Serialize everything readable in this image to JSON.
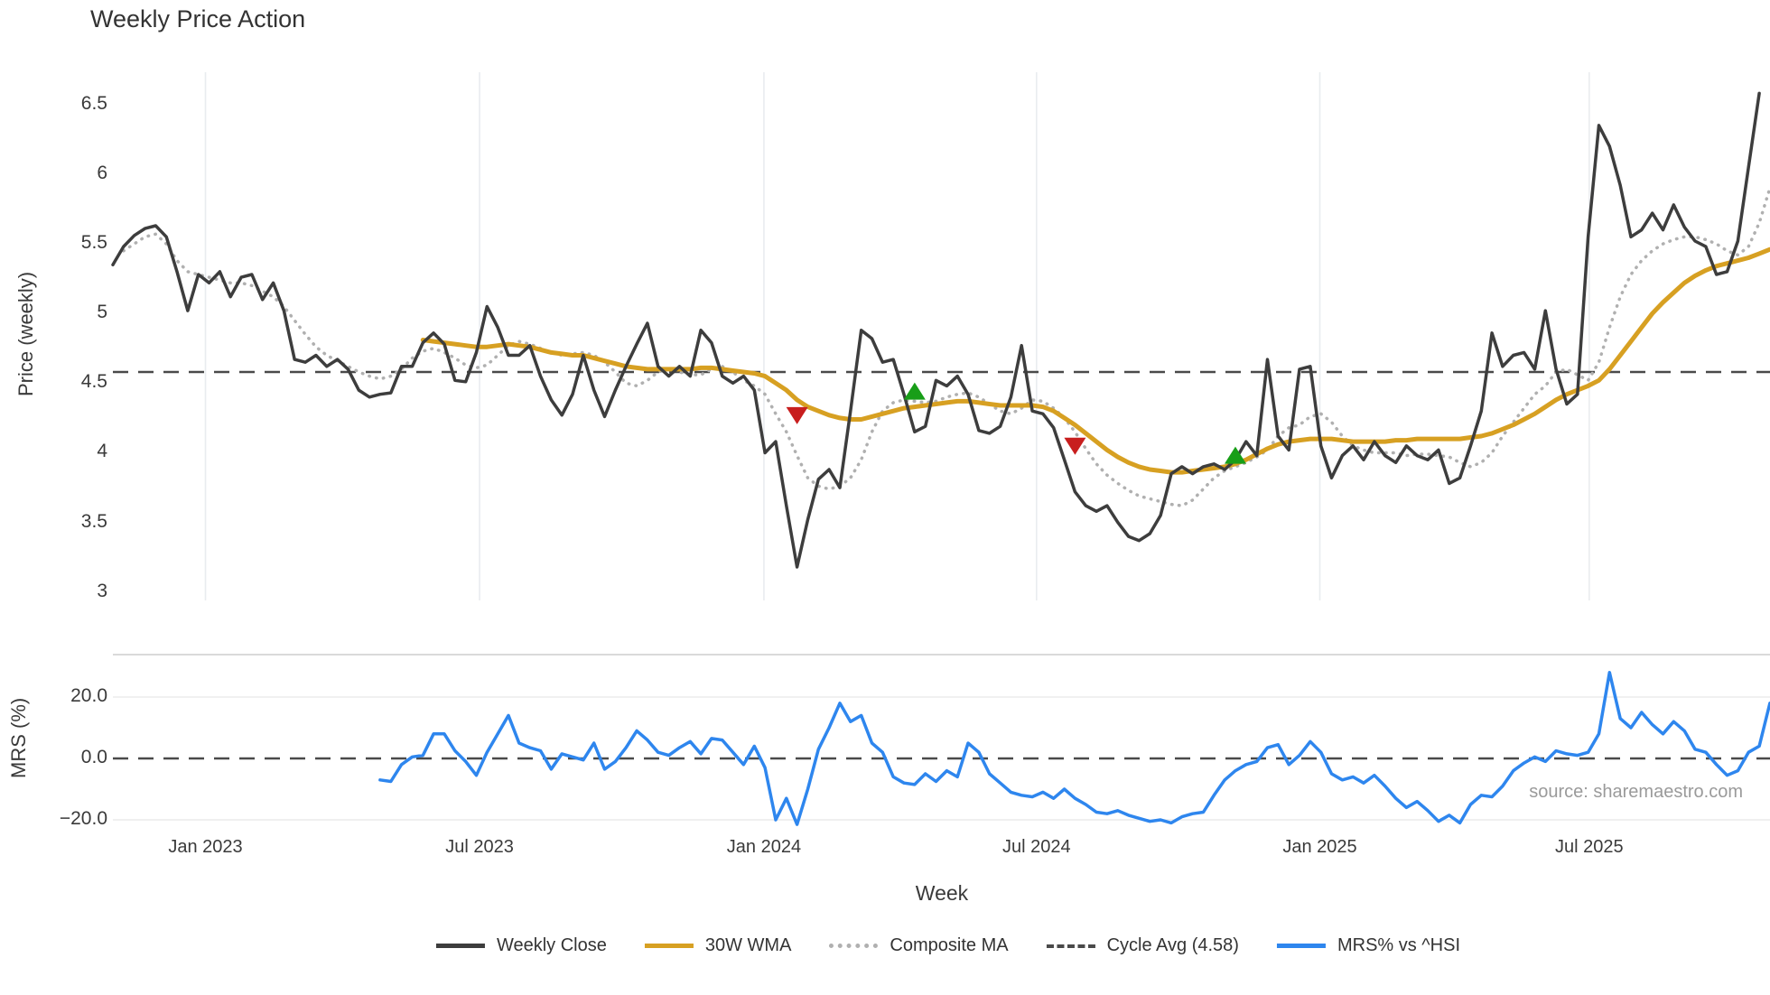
{
  "title": "Weekly Price Action",
  "source_note": "source: sharemaestro.com",
  "colors": {
    "weekly_close": "#3d3d3d",
    "wma": "#d7a022",
    "composite": "#b0b0b0",
    "cycle_avg": "#4a4a4a",
    "mrs": "#2e86ee",
    "marker_up": "#189e18",
    "marker_down": "#c81e1e",
    "grid": "#e9ecef",
    "divider": "#d4d4d4",
    "faint_grid": "#ececec",
    "text": "#3a3a3a",
    "muted": "#9a9a9a"
  },
  "chart_data": {
    "type": "line",
    "title": "Weekly Price Action",
    "xlabel": "Week",
    "legend_position": "bottom-center",
    "grid": "vertical-on-price-panel",
    "x_ticks": [
      {
        "label": "Jan 2023",
        "week": 8.66
      },
      {
        "label": "Jul 2023",
        "week": 34.3
      },
      {
        "label": "Jan 2024",
        "week": 60.9
      },
      {
        "label": "Jul 2024",
        "week": 86.4
      },
      {
        "label": "Jan 2025",
        "week": 112.9
      },
      {
        "label": "Jul 2025",
        "week": 138.1
      }
    ],
    "panels": [
      {
        "name": "price",
        "ylabel": "Price (weekly)",
        "ylim": [
          2.97,
          6.73
        ],
        "yticks": [
          {
            "v": 6.5,
            "label": "6.5"
          },
          {
            "v": 6,
            "label": "6"
          },
          {
            "v": 5.5,
            "label": "5.5"
          },
          {
            "v": 5,
            "label": "5"
          },
          {
            "v": 4.5,
            "label": "4.5"
          },
          {
            "v": 4,
            "label": "4"
          },
          {
            "v": 3.5,
            "label": "3.5"
          },
          {
            "v": 3,
            "label": "3"
          }
        ],
        "series": [
          {
            "name": "Weekly Close",
            "kind": "line",
            "color_key": "weekly_close",
            "width": 3.5,
            "start_week": 0,
            "values": [
              5.35,
              5.48,
              5.56,
              5.61,
              5.63,
              5.55,
              5.3,
              5.02,
              5.28,
              5.22,
              5.3,
              5.12,
              5.26,
              5.28,
              5.1,
              5.22,
              5.02,
              4.67,
              4.65,
              4.7,
              4.62,
              4.67,
              4.6,
              4.45,
              4.4,
              4.42,
              4.43,
              4.62,
              4.62,
              4.79,
              4.86,
              4.78,
              4.52,
              4.51,
              4.72,
              5.05,
              4.9,
              4.7,
              4.7,
              4.77,
              4.55,
              4.38,
              4.27,
              4.42,
              4.7,
              4.45,
              4.26,
              4.45,
              4.62,
              4.78,
              4.93,
              4.62,
              4.55,
              4.62,
              4.55,
              4.88,
              4.79,
              4.55,
              4.5,
              4.55,
              4.45,
              4.0,
              4.08,
              3.62,
              3.18,
              3.52,
              3.81,
              3.88,
              3.75,
              4.3,
              4.88,
              4.82,
              4.65,
              4.67,
              4.42,
              4.15,
              4.19,
              4.52,
              4.48,
              4.55,
              4.42,
              4.16,
              4.14,
              4.19,
              4.4,
              4.77,
              4.3,
              4.28,
              4.18,
              3.95,
              3.72,
              3.62,
              3.58,
              3.62,
              3.5,
              3.4,
              3.37,
              3.42,
              3.55,
              3.85,
              3.9,
              3.85,
              3.9,
              3.92,
              3.88,
              3.95,
              4.08,
              3.98,
              4.67,
              4.12,
              4.02,
              4.6,
              4.62,
              4.05,
              3.82,
              3.98,
              4.05,
              3.95,
              4.08,
              3.98,
              3.93,
              4.05,
              3.98,
              3.95,
              4.02,
              3.78,
              3.82,
              4.05,
              4.3,
              4.86,
              4.62,
              4.7,
              4.72,
              4.6,
              5.02,
              4.6,
              4.35,
              4.42,
              5.55,
              6.35,
              6.2,
              5.92,
              5.55,
              5.6,
              5.72,
              5.6,
              5.78,
              5.62,
              5.52,
              5.48,
              5.28,
              5.3,
              5.52,
              6.05,
              6.58
            ]
          },
          {
            "name": "30W WMA",
            "kind": "line",
            "color_key": "wma",
            "width": 5,
            "start_week": 29,
            "values": [
              4.81,
              4.8,
              4.79,
              4.78,
              4.77,
              4.76,
              4.76,
              4.77,
              4.78,
              4.77,
              4.76,
              4.74,
              4.72,
              4.71,
              4.7,
              4.7,
              4.68,
              4.66,
              4.64,
              4.62,
              4.61,
              4.6,
              4.6,
              4.6,
              4.6,
              4.6,
              4.61,
              4.61,
              4.6,
              4.59,
              4.58,
              4.57,
              4.55,
              4.5,
              4.45,
              4.38,
              4.33,
              4.3,
              4.27,
              4.25,
              4.24,
              4.24,
              4.26,
              4.28,
              4.3,
              4.32,
              4.33,
              4.34,
              4.35,
              4.36,
              4.37,
              4.37,
              4.36,
              4.35,
              4.34,
              4.34,
              4.34,
              4.34,
              4.33,
              4.3,
              4.25,
              4.2,
              4.14,
              4.08,
              4.02,
              3.97,
              3.93,
              3.9,
              3.88,
              3.87,
              3.86,
              3.86,
              3.87,
              3.88,
              3.89,
              3.9,
              3.92,
              3.95,
              3.99,
              4.03,
              4.06,
              4.08,
              4.09,
              4.1,
              4.1,
              4.1,
              4.09,
              4.08,
              4.08,
              4.08,
              4.08,
              4.09,
              4.09,
              4.1,
              4.1,
              4.1,
              4.1,
              4.1,
              4.11,
              4.12,
              4.14,
              4.17,
              4.2,
              4.24,
              4.28,
              4.33,
              4.38,
              4.42,
              4.45,
              4.48,
              4.52,
              4.6,
              4.7,
              4.8,
              4.9,
              5.0,
              5.08,
              5.15,
              5.22,
              5.27,
              5.31,
              5.34,
              5.36,
              5.38,
              5.4,
              5.43,
              5.46
            ]
          },
          {
            "name": "Composite MA",
            "kind": "line",
            "dash": "dotted",
            "color_key": "composite",
            "width": 3.5,
            "start_week": 1,
            "values": [
              5.45,
              5.5,
              5.55,
              5.57,
              5.5,
              5.38,
              5.3,
              5.28,
              5.26,
              5.24,
              5.22,
              5.22,
              5.2,
              5.16,
              5.12,
              5.05,
              4.95,
              4.85,
              4.76,
              4.7,
              4.66,
              4.62,
              4.58,
              4.55,
              4.53,
              4.55,
              4.6,
              4.68,
              4.73,
              4.75,
              4.72,
              4.68,
              4.63,
              4.61,
              4.63,
              4.7,
              4.77,
              4.8,
              4.78,
              4.75,
              4.72,
              4.7,
              4.71,
              4.72,
              4.7,
              4.65,
              4.58,
              4.5,
              4.48,
              4.52,
              4.58,
              4.6,
              4.58,
              4.56,
              4.56,
              4.6,
              4.62,
              4.58,
              4.52,
              4.48,
              4.42,
              4.28,
              4.15,
              3.98,
              3.82,
              3.76,
              3.74,
              3.76,
              3.82,
              3.95,
              4.15,
              4.3,
              4.36,
              4.38,
              4.37,
              4.36,
              4.37,
              4.4,
              4.42,
              4.43,
              4.4,
              4.35,
              4.3,
              4.28,
              4.32,
              4.38,
              4.37,
              4.32,
              4.25,
              4.15,
              4.03,
              3.92,
              3.84,
              3.78,
              3.73,
              3.69,
              3.67,
              3.65,
              3.63,
              3.62,
              3.66,
              3.74,
              3.82,
              3.87,
              3.9,
              3.93,
              3.97,
              4.02,
              4.12,
              4.18,
              4.2,
              4.26,
              4.28,
              4.22,
              4.12,
              4.05,
              4.02,
              4.0,
              4.0,
              4.0,
              3.98,
              3.99,
              3.99,
              3.98,
              3.97,
              3.93,
              3.9,
              3.93,
              4.0,
              4.12,
              4.22,
              4.32,
              4.42,
              4.48,
              4.58,
              4.6,
              4.56,
              4.52,
              4.65,
              4.9,
              5.12,
              5.28,
              5.38,
              5.45,
              5.5,
              5.53,
              5.55,
              5.55,
              5.53,
              5.5,
              5.45,
              5.42,
              5.48,
              5.65,
              5.9
            ]
          },
          {
            "name": "Cycle Avg (4.58)",
            "kind": "hline",
            "dash": "dashed",
            "color_key": "cycle_avg",
            "width": 2.5,
            "y": 4.58
          }
        ],
        "markers": [
          {
            "shape": "triangle-down",
            "color_key": "marker_down",
            "week": 64,
            "price": 4.27
          },
          {
            "shape": "triangle-up",
            "color_key": "marker_up",
            "week": 75,
            "price": 4.44
          },
          {
            "shape": "triangle-down",
            "color_key": "marker_down",
            "week": 90,
            "price": 4.05
          },
          {
            "shape": "triangle-up",
            "color_key": "marker_up",
            "week": 105,
            "price": 3.98
          }
        ]
      },
      {
        "name": "mrs",
        "ylabel": "MRS (%)",
        "ylim": [
          -22,
          33.8
        ],
        "yticks": [
          {
            "v": 20,
            "label": "20.0"
          },
          {
            "v": 0,
            "label": "0.0"
          },
          {
            "v": -20,
            "label": "−20.0"
          }
        ],
        "series": [
          {
            "name": "MRS% vs ^HSI",
            "kind": "line",
            "color_key": "mrs",
            "width": 3.5,
            "start_week": 25,
            "values": [
              -7,
              -7.5,
              -2,
              0.5,
              1,
              8,
              8,
              2.5,
              -1,
              -5.5,
              2,
              8,
              14,
              5,
              3.5,
              2.5,
              -3.5,
              1.5,
              0.5,
              -0.5,
              5,
              -3.5,
              -1,
              3.5,
              9,
              6,
              2,
              1,
              3.5,
              5.5,
              1.5,
              6.5,
              6,
              2,
              -2,
              4,
              -3,
              -20,
              -13,
              -21.5,
              -10,
              3,
              10,
              18,
              12,
              14,
              5,
              2,
              -6,
              -8,
              -8.5,
              -5,
              -7.5,
              -4,
              -6,
              5,
              2,
              -5,
              -8,
              -11,
              -12,
              -12.5,
              -11,
              -13,
              -10,
              -13,
              -15,
              -17.5,
              -18,
              -17,
              -18.5,
              -19.5,
              -20.5,
              -20,
              -21,
              -19,
              -18,
              -17.5,
              -12,
              -7,
              -4,
              -2,
              -1,
              3.5,
              4.5,
              -2,
              1,
              5.5,
              2,
              -5,
              -7,
              -6,
              -8,
              -5.5,
              -9,
              -13,
              -16,
              -14,
              -17,
              -20.5,
              -18.5,
              -21,
              -15,
              -12,
              -12.5,
              -9,
              -4,
              -1.5,
              0.5,
              -1,
              2.5,
              1.5,
              1,
              2,
              8,
              28,
              13,
              10,
              15,
              11,
              8,
              12,
              9,
              3,
              2,
              -2,
              -5.5,
              -4,
              2,
              4,
              18
            ]
          },
          {
            "name": "zero-line",
            "kind": "hline",
            "dash": "dashed",
            "color_key": "cycle_avg",
            "width": 2.5,
            "y": 0
          }
        ]
      }
    ],
    "legend": [
      {
        "label": "Weekly Close",
        "color_key": "weekly_close",
        "style": "solid"
      },
      {
        "label": "30W WMA",
        "color_key": "wma",
        "style": "solid"
      },
      {
        "label": "Composite MA",
        "color_key": "composite",
        "style": "dotted"
      },
      {
        "label": "Cycle Avg (4.58)",
        "color_key": "cycle_avg",
        "style": "dashed"
      },
      {
        "label": "MRS% vs ^HSI",
        "color_key": "mrs",
        "style": "solid"
      }
    ]
  }
}
